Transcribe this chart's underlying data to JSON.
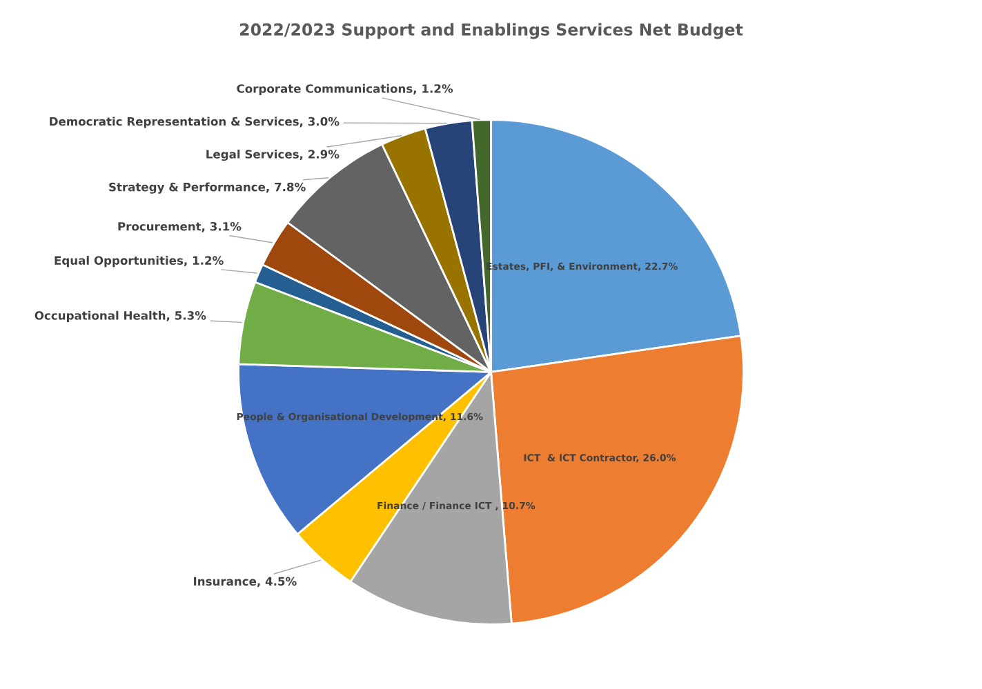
{
  "chart_data": {
    "type": "pie",
    "title": "2022/2023 Support and Enablings Services Net Budget",
    "categories": [
      "Estates, PFI, & Environment",
      "ICT  & ICT Contractor",
      "Finance / Finance ICT ",
      "Insurance",
      "People & Organisational Development",
      "Occupational Health",
      "Equal Opportunities",
      "Procurement",
      "Strategy & Performance",
      "Legal Services",
      "Democratic Representation & Services",
      "Corporate Communications"
    ],
    "values": [
      22.7,
      26.0,
      10.7,
      4.5,
      11.6,
      5.3,
      1.2,
      3.1,
      7.8,
      2.9,
      3.0,
      1.2
    ],
    "value_labels": [
      "22.7%",
      "26.0%",
      "10.7%",
      "4.5%",
      "11.6%",
      "5.3%",
      "1.2%",
      "3.1%",
      "7.8%",
      "2.9%",
      "3.0%",
      "1.2%"
    ],
    "colors": [
      "#5b9bd5",
      "#ed7d31",
      "#a5a5a5",
      "#ffc000",
      "#4472c4",
      "#70ad47",
      "#255e91",
      "#9e480e",
      "#636363",
      "#997300",
      "#264478",
      "#43682b"
    ],
    "legend": false
  }
}
